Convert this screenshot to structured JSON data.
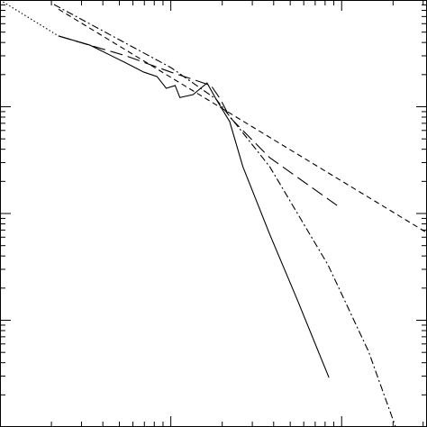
{
  "chart_data": {
    "type": "line",
    "xscale": "log",
    "yscale": "log",
    "xlim": [
      1,
      316
    ],
    "ylim": [
      0.0001,
      1
    ],
    "xticks": [
      2,
      3,
      4,
      5,
      6,
      7,
      8,
      9,
      10,
      20,
      30,
      40,
      50,
      60,
      70,
      80,
      90,
      100,
      200,
      300
    ],
    "yticks": [
      0.0002,
      0.0003,
      0.0004,
      0.0005,
      0.0006,
      0.0007,
      0.0008,
      0.0009,
      0.001,
      0.002,
      0.003,
      0.004,
      0.005,
      0.006,
      0.007,
      0.008,
      0.009,
      0.01,
      0.02,
      0.03,
      0.04,
      0.05,
      0.06,
      0.07,
      0.08,
      0.09,
      0.1,
      0.2,
      0.3,
      0.4,
      0.5,
      0.6,
      0.7,
      0.8,
      0.9
    ],
    "series": [
      {
        "color": "#000000",
        "dash": "solid",
        "x": [
          2.2,
          3.36,
          5.46,
          6.95,
          8.3,
          9.4,
          10.6,
          11.3,
          13.5,
          16.3,
          18.4,
          22.1,
          26.4,
          37.9,
          54.6,
          84.3
        ],
        "values": [
          0.46,
          0.378,
          0.257,
          0.211,
          0.192,
          0.149,
          0.158,
          0.122,
          0.13,
          0.167,
          0.118,
          0.0727,
          0.0275,
          0.0064,
          0.0016,
          0.00029
        ]
      },
      {
        "color": "#000000",
        "dash": "long-dash",
        "x": [
          2.2,
          5.46,
          10,
          14.4,
          17.2,
          19.5,
          22.1,
          37.9,
          94
        ],
        "values": [
          0.46,
          0.3,
          0.211,
          0.174,
          0.158,
          0.118,
          0.08,
          0.0334,
          0.0119
        ]
      },
      {
        "color": "#000000",
        "dash": "short-dash",
        "x": [
          2.2,
          316
        ],
        "values": [
          0.82,
          0.0066
        ]
      },
      {
        "color": "#000000",
        "dash": "dash-dot",
        "x": [
          2.07,
          10,
          18.4,
          37.9,
          83.2,
          143.7,
          207
        ],
        "values": [
          0.907,
          0.233,
          0.118,
          0.0275,
          0.0033,
          0.00051,
          0.0001
        ]
      },
      {
        "color": "#000000",
        "dash": "dotted",
        "x": [
          1,
          2.2
        ],
        "values": [
          1,
          0.46
        ]
      }
    ]
  }
}
